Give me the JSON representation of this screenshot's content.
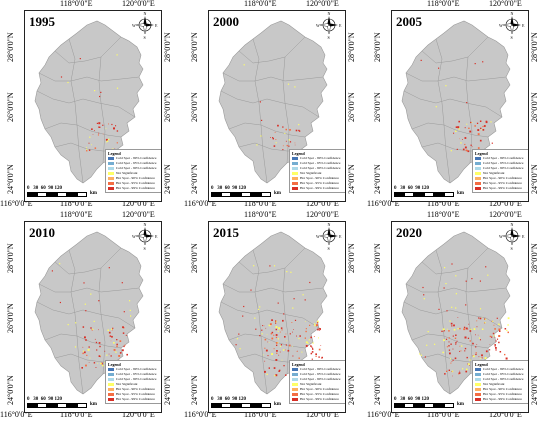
{
  "panels": [
    {
      "year": "1995",
      "lon_top": [
        "118°0'0\"E",
        "120°0'0\"E"
      ],
      "lon_bottom": [
        "116°0'0\"E",
        "118°0'0\"E",
        "120°0'0\"E"
      ],
      "lat_left": [
        "28°0'0\"N",
        "26°0'0\"N",
        "24°0'0\"N"
      ],
      "lat_right": [
        "28°0'0\"N",
        "26°0'0\"N",
        "24°0'0\"N"
      ]
    },
    {
      "year": "2000",
      "lon_top": [
        "118°0'0\"E",
        "120°0'0\"E"
      ],
      "lon_bottom": [
        "116°0'0\"E",
        "118°0'0\"E",
        "120°0'0\"E"
      ],
      "lat_left": [
        "28°0'0\"N",
        "26°0'0\"N",
        "24°0'0\"N"
      ],
      "lat_right": [
        "28°0'0\"N",
        "26°0'0\"N",
        "24°0'0\"N"
      ]
    },
    {
      "year": "2005",
      "lon_top": [
        "118°0'0\"E",
        "120°0'0\"E"
      ],
      "lon_bottom": [
        "116°0'0\"E",
        "118°0'0\"E",
        "120°0'0\"E"
      ],
      "lat_left": [
        "28°0'0\"N",
        "26°0'0\"N",
        "24°0'0\"N"
      ],
      "lat_right": [
        "28°0'0\"N",
        "26°0'0\"N",
        "24°0'0\"N"
      ]
    },
    {
      "year": "2010",
      "lon_top": [
        "118°0'0\"E",
        "120°0'0\"E"
      ],
      "lon_bottom": [
        "116°0'0\"E",
        "118°0'0\"E",
        "120°0'0\"E"
      ],
      "lat_left": [
        "28°0'0\"N",
        "26°0'0\"N",
        "24°0'0\"N"
      ],
      "lat_right": [
        "28°0'0\"N",
        "26°0'0\"N",
        "24°0'0\"N"
      ]
    },
    {
      "year": "2015",
      "lon_top": [
        "118°0'0\"E",
        "120°0'0\"E"
      ],
      "lon_bottom": [
        "116°0'0\"E",
        "118°0'0\"E",
        "120°0'0\"E"
      ],
      "lat_left": [
        "28°0'0\"N",
        "26°0'0\"N",
        "24°0'0\"N"
      ],
      "lat_right": [
        "28°0'0\"N",
        "26°0'0\"N",
        "24°0'0\"N"
      ]
    },
    {
      "year": "2020",
      "lon_top": [
        "118°0'0\"E",
        "120°0'0\"E"
      ],
      "lon_bottom": [
        "116°0'0\"E",
        "118°0'0\"E",
        "120°0'0\"E"
      ],
      "lat_left": [
        "28°0'0\"N",
        "26°0'0\"N",
        "24°0'0\"N"
      ],
      "lat_right": [
        "28°0'0\"N",
        "26°0'0\"N",
        "24°0'0\"N"
      ]
    }
  ],
  "compass": {
    "n": "N",
    "s": "S",
    "e": "E",
    "w": "W"
  },
  "legend": {
    "title": "Legend",
    "items": [
      {
        "label": "Cold Spot - 99% Confidence",
        "color": "#4575b4"
      },
      {
        "label": "Cold Spot - 95% Confidence",
        "color": "#74add1"
      },
      {
        "label": "Cold Spot - 90% Confidence",
        "color": "#abd9e9"
      },
      {
        "label": "Not Significant",
        "color": "#ffff66"
      },
      {
        "label": "Hot Spot - 90% Confidence",
        "color": "#fdae61"
      },
      {
        "label": "Hot Spot - 95% Confidence",
        "color": "#f46d43"
      },
      {
        "label": "Hot Spot - 99% Confidence",
        "color": "#d73027"
      }
    ]
  },
  "scalebar": {
    "ticks": "0   30  60  90 120",
    "unit": "km"
  },
  "colors": {
    "land": "#c8c8c8",
    "boundary": "#9a9a9a",
    "hot": "#d73027",
    "warm": "#f46d43",
    "notsig": "#ffff66"
  },
  "hotspot_intensity": [
    0.15,
    0.1,
    0.2,
    0.45,
    0.8,
    0.9
  ]
}
